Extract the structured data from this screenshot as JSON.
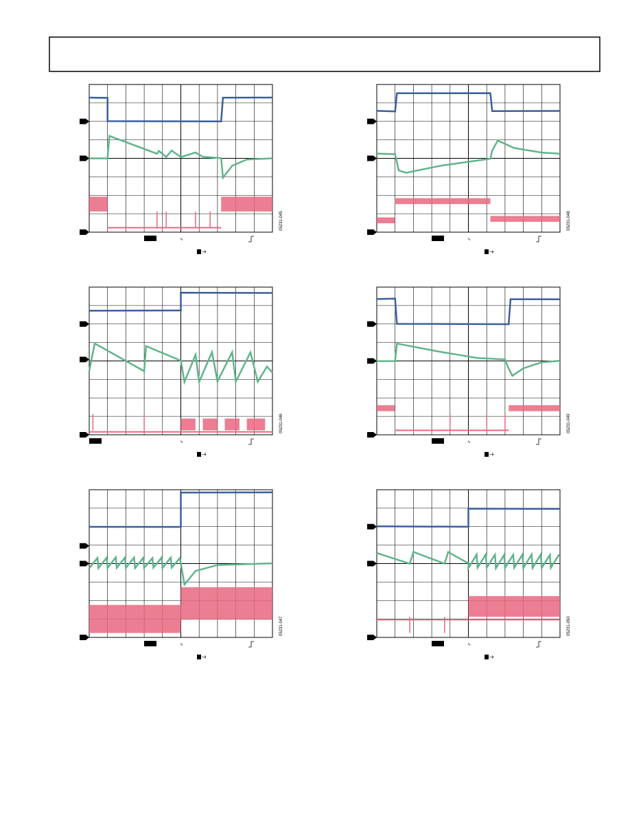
{
  "figures": [
    {
      "id": "05231-045"
    },
    {
      "id": "05231-048"
    },
    {
      "id": "05231-046"
    },
    {
      "id": "05231-049"
    },
    {
      "id": "05231-047"
    },
    {
      "id": "05231-050"
    }
  ]
}
